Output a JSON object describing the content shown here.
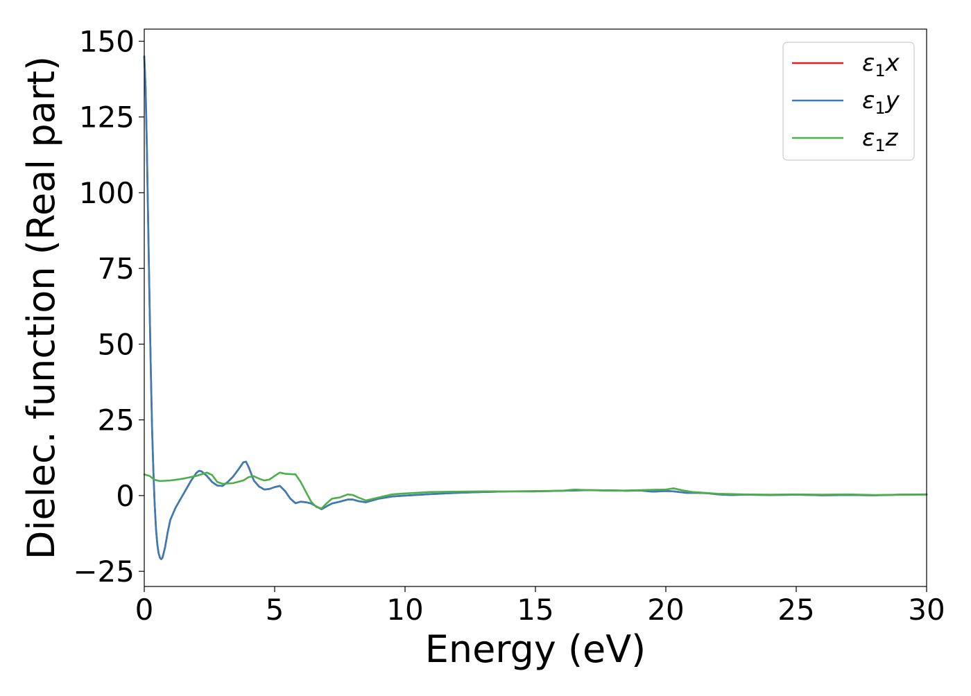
{
  "chart_data": {
    "type": "line",
    "xlabel": "Energy (eV)",
    "ylabel": "Dielec. function (Real part)",
    "xlim": [
      0,
      30
    ],
    "ylim": [
      -30,
      154
    ],
    "xticks": [
      0,
      5,
      10,
      15,
      20,
      25,
      30
    ],
    "xtick_labels": [
      "0",
      "5",
      "10",
      "15",
      "20",
      "25",
      "30"
    ],
    "yticks": [
      -25,
      0,
      25,
      50,
      75,
      100,
      125,
      150
    ],
    "ytick_labels": [
      "−25",
      "0",
      "25",
      "50",
      "75",
      "100",
      "125",
      "150"
    ],
    "grid": false,
    "legend_position": "top-right",
    "series": [
      {
        "name": "ε",
        "sub": "1",
        "suffix": "x",
        "color": "#e41a1c",
        "points": [
          [
            0.0,
            145
          ],
          [
            0.05,
            135
          ],
          [
            0.1,
            115
          ],
          [
            0.15,
            90
          ],
          [
            0.2,
            65
          ],
          [
            0.25,
            42
          ],
          [
            0.3,
            22
          ],
          [
            0.35,
            8
          ],
          [
            0.4,
            -3
          ],
          [
            0.45,
            -11
          ],
          [
            0.5,
            -16
          ],
          [
            0.55,
            -19
          ],
          [
            0.6,
            -20.5
          ],
          [
            0.65,
            -21
          ],
          [
            0.7,
            -20.5
          ],
          [
            0.8,
            -17
          ],
          [
            0.9,
            -12
          ],
          [
            1.0,
            -8
          ],
          [
            1.2,
            -4
          ],
          [
            1.4,
            -1
          ],
          [
            1.6,
            2
          ],
          [
            1.8,
            5
          ],
          [
            2.0,
            7.5
          ],
          [
            2.1,
            8.2
          ],
          [
            2.2,
            8.0
          ],
          [
            2.4,
            6.5
          ],
          [
            2.6,
            4.5
          ],
          [
            2.8,
            3.3
          ],
          [
            3.0,
            3.2
          ],
          [
            3.2,
            4.5
          ],
          [
            3.4,
            6.2
          ],
          [
            3.6,
            8.5
          ],
          [
            3.8,
            11
          ],
          [
            3.9,
            11.2
          ],
          [
            4.0,
            9.5
          ],
          [
            4.2,
            5
          ],
          [
            4.4,
            3
          ],
          [
            4.6,
            2
          ],
          [
            4.8,
            2.2
          ],
          [
            5.0,
            2.8
          ],
          [
            5.2,
            3.2
          ],
          [
            5.4,
            1.5
          ],
          [
            5.6,
            -1
          ],
          [
            5.8,
            -2.5
          ],
          [
            6.0,
            -2
          ],
          [
            6.2,
            -2.2
          ],
          [
            6.4,
            -2.6
          ],
          [
            6.6,
            -3.6
          ],
          [
            6.8,
            -4.5
          ],
          [
            7.0,
            -3.5
          ],
          [
            7.2,
            -2.6
          ],
          [
            7.5,
            -2
          ],
          [
            7.8,
            -1.3
          ],
          [
            8.0,
            -1.3
          ],
          [
            8.2,
            -1.8
          ],
          [
            8.5,
            -2.2
          ],
          [
            9.0,
            -1
          ],
          [
            9.5,
            -0.3
          ],
          [
            10,
            0
          ],
          [
            11,
            0.5
          ],
          [
            12,
            0.9
          ],
          [
            13,
            1.2
          ],
          [
            14,
            1.4
          ],
          [
            15,
            1.4
          ],
          [
            16,
            1.6
          ],
          [
            17,
            1.8
          ],
          [
            18,
            1.7
          ],
          [
            18.5,
            1.6
          ],
          [
            19,
            1.7
          ],
          [
            19.5,
            1.3
          ],
          [
            20,
            1.5
          ],
          [
            20.3,
            1.4
          ],
          [
            20.8,
            0.9
          ],
          [
            21.2,
            0.9
          ],
          [
            21.6,
            0.8
          ],
          [
            22,
            0.4
          ],
          [
            22.5,
            0.2
          ],
          [
            23,
            0.3
          ],
          [
            24,
            0.2
          ],
          [
            25,
            0.3
          ],
          [
            26,
            0.1
          ],
          [
            27,
            0.2
          ],
          [
            28,
            0.1
          ],
          [
            29,
            0.3
          ],
          [
            30,
            0.4
          ]
        ]
      },
      {
        "name": "ε",
        "sub": "1",
        "suffix": "y",
        "color": "#377eb8",
        "points": [
          [
            0.0,
            145
          ],
          [
            0.05,
            135
          ],
          [
            0.1,
            115
          ],
          [
            0.15,
            90
          ],
          [
            0.2,
            65
          ],
          [
            0.25,
            42
          ],
          [
            0.3,
            22
          ],
          [
            0.35,
            8
          ],
          [
            0.4,
            -3
          ],
          [
            0.45,
            -11
          ],
          [
            0.5,
            -16
          ],
          [
            0.55,
            -19
          ],
          [
            0.6,
            -20.5
          ],
          [
            0.65,
            -21
          ],
          [
            0.7,
            -20.5
          ],
          [
            0.8,
            -17
          ],
          [
            0.9,
            -12
          ],
          [
            1.0,
            -8
          ],
          [
            1.2,
            -4
          ],
          [
            1.4,
            -1
          ],
          [
            1.6,
            2
          ],
          [
            1.8,
            5
          ],
          [
            2.0,
            7.5
          ],
          [
            2.1,
            8.2
          ],
          [
            2.2,
            8.0
          ],
          [
            2.4,
            6.5
          ],
          [
            2.6,
            4.5
          ],
          [
            2.8,
            3.3
          ],
          [
            3.0,
            3.2
          ],
          [
            3.2,
            4.5
          ],
          [
            3.4,
            6.2
          ],
          [
            3.6,
            8.5
          ],
          [
            3.8,
            11
          ],
          [
            3.9,
            11.2
          ],
          [
            4.0,
            9.5
          ],
          [
            4.2,
            5
          ],
          [
            4.4,
            3
          ],
          [
            4.6,
            2
          ],
          [
            4.8,
            2.2
          ],
          [
            5.0,
            2.8
          ],
          [
            5.2,
            3.2
          ],
          [
            5.4,
            1.5
          ],
          [
            5.6,
            -1
          ],
          [
            5.8,
            -2.5
          ],
          [
            6.0,
            -2
          ],
          [
            6.2,
            -2.2
          ],
          [
            6.4,
            -2.6
          ],
          [
            6.6,
            -3.6
          ],
          [
            6.8,
            -4.5
          ],
          [
            7.0,
            -3.5
          ],
          [
            7.2,
            -2.6
          ],
          [
            7.5,
            -2
          ],
          [
            7.8,
            -1.3
          ],
          [
            8.0,
            -1.3
          ],
          [
            8.2,
            -1.8
          ],
          [
            8.5,
            -2.2
          ],
          [
            9.0,
            -1
          ],
          [
            9.5,
            -0.3
          ],
          [
            10,
            0
          ],
          [
            11,
            0.5
          ],
          [
            12,
            0.9
          ],
          [
            13,
            1.2
          ],
          [
            14,
            1.4
          ],
          [
            15,
            1.4
          ],
          [
            16,
            1.6
          ],
          [
            17,
            1.8
          ],
          [
            18,
            1.7
          ],
          [
            18.5,
            1.6
          ],
          [
            19,
            1.7
          ],
          [
            19.5,
            1.3
          ],
          [
            20,
            1.5
          ],
          [
            20.3,
            1.4
          ],
          [
            20.8,
            0.9
          ],
          [
            21.2,
            0.9
          ],
          [
            21.6,
            0.8
          ],
          [
            22,
            0.4
          ],
          [
            22.5,
            0.2
          ],
          [
            23,
            0.3
          ],
          [
            24,
            0.2
          ],
          [
            25,
            0.3
          ],
          [
            26,
            0.1
          ],
          [
            27,
            0.2
          ],
          [
            28,
            0.1
          ],
          [
            29,
            0.3
          ],
          [
            30,
            0.4
          ]
        ]
      },
      {
        "name": "ε",
        "sub": "1",
        "suffix": "z",
        "color": "#4daf4a",
        "points": [
          [
            0.0,
            7
          ],
          [
            0.2,
            6.5
          ],
          [
            0.4,
            5.2
          ],
          [
            0.6,
            4.8
          ],
          [
            0.8,
            4.9
          ],
          [
            1.0,
            5.0
          ],
          [
            1.5,
            5.6
          ],
          [
            2.0,
            6.5
          ],
          [
            2.4,
            7.6
          ],
          [
            2.6,
            6.8
          ],
          [
            2.8,
            4.5
          ],
          [
            3.0,
            3.9
          ],
          [
            3.4,
            4.1
          ],
          [
            3.8,
            5.0
          ],
          [
            4.0,
            6.1
          ],
          [
            4.2,
            6.4
          ],
          [
            4.4,
            5.6
          ],
          [
            4.6,
            5.0
          ],
          [
            4.8,
            5.3
          ],
          [
            5.0,
            6.5
          ],
          [
            5.2,
            7.6
          ],
          [
            5.4,
            7.2
          ],
          [
            5.6,
            7.1
          ],
          [
            5.8,
            7.0
          ],
          [
            6.0,
            4.5
          ],
          [
            6.2,
            1.2
          ],
          [
            6.4,
            -2
          ],
          [
            6.6,
            -3.8
          ],
          [
            6.8,
            -4.2
          ],
          [
            7.0,
            -2.5
          ],
          [
            7.2,
            -1.0
          ],
          [
            7.5,
            -0.6
          ],
          [
            7.8,
            0.4
          ],
          [
            8.0,
            0.2
          ],
          [
            8.2,
            -0.6
          ],
          [
            8.5,
            -1.6
          ],
          [
            9.0,
            -0.6
          ],
          [
            9.5,
            0.4
          ],
          [
            10,
            0.7
          ],
          [
            11,
            1.2
          ],
          [
            12,
            1.3
          ],
          [
            13,
            1.4
          ],
          [
            14,
            1.4
          ],
          [
            15,
            1.5
          ],
          [
            16,
            1.6
          ],
          [
            16.5,
            2.0
          ],
          [
            17,
            1.8
          ],
          [
            18,
            1.6
          ],
          [
            19,
            1.8
          ],
          [
            19.5,
            1.9
          ],
          [
            20,
            2.0
          ],
          [
            20.3,
            2.4
          ],
          [
            20.6,
            1.8
          ],
          [
            21,
            1.2
          ],
          [
            21.5,
            0.9
          ],
          [
            22,
            0.6
          ],
          [
            22.5,
            0.5
          ],
          [
            23,
            0.4
          ],
          [
            24,
            0.3
          ],
          [
            25,
            0.4
          ],
          [
            26,
            0.3
          ],
          [
            27,
            0.4
          ],
          [
            28,
            0.2
          ],
          [
            29,
            0.3
          ],
          [
            30,
            0.3
          ]
        ]
      }
    ]
  }
}
